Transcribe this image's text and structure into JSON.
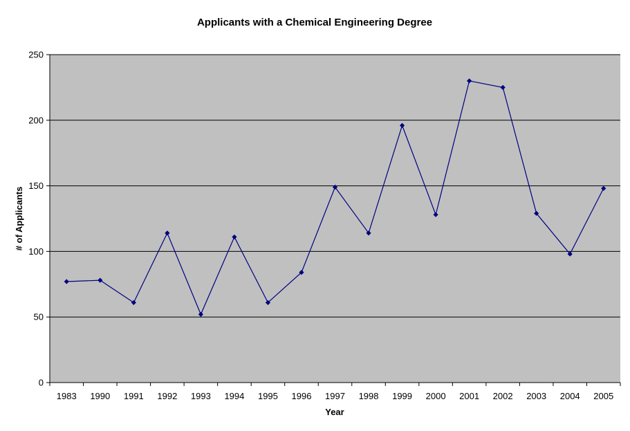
{
  "chart_data": {
    "type": "line",
    "title": "Applicants with a Chemical Engineering Degree",
    "xlabel": "Year",
    "ylabel": "# of Applicants",
    "categories": [
      "1983",
      "1990",
      "1991",
      "1992",
      "1993",
      "1994",
      "1995",
      "1996",
      "1997",
      "1998",
      "1999",
      "2000",
      "2001",
      "2002",
      "2003",
      "2004",
      "2005"
    ],
    "series": [
      {
        "values": [
          77,
          78,
          61,
          114,
          52,
          111,
          61,
          84,
          149,
          114,
          196,
          128,
          230,
          225,
          129,
          98,
          148
        ]
      }
    ],
    "ylim": [
      0,
      250
    ],
    "yticks": [
      0,
      50,
      100,
      150,
      200,
      250
    ],
    "grid": "horizontal",
    "legend": "none",
    "colors": {
      "plot_background": "#c0c0c0",
      "line": "#000080",
      "marker": "#000080",
      "gridline": "#000000",
      "axis": "#000000"
    },
    "marker": "diamond"
  }
}
